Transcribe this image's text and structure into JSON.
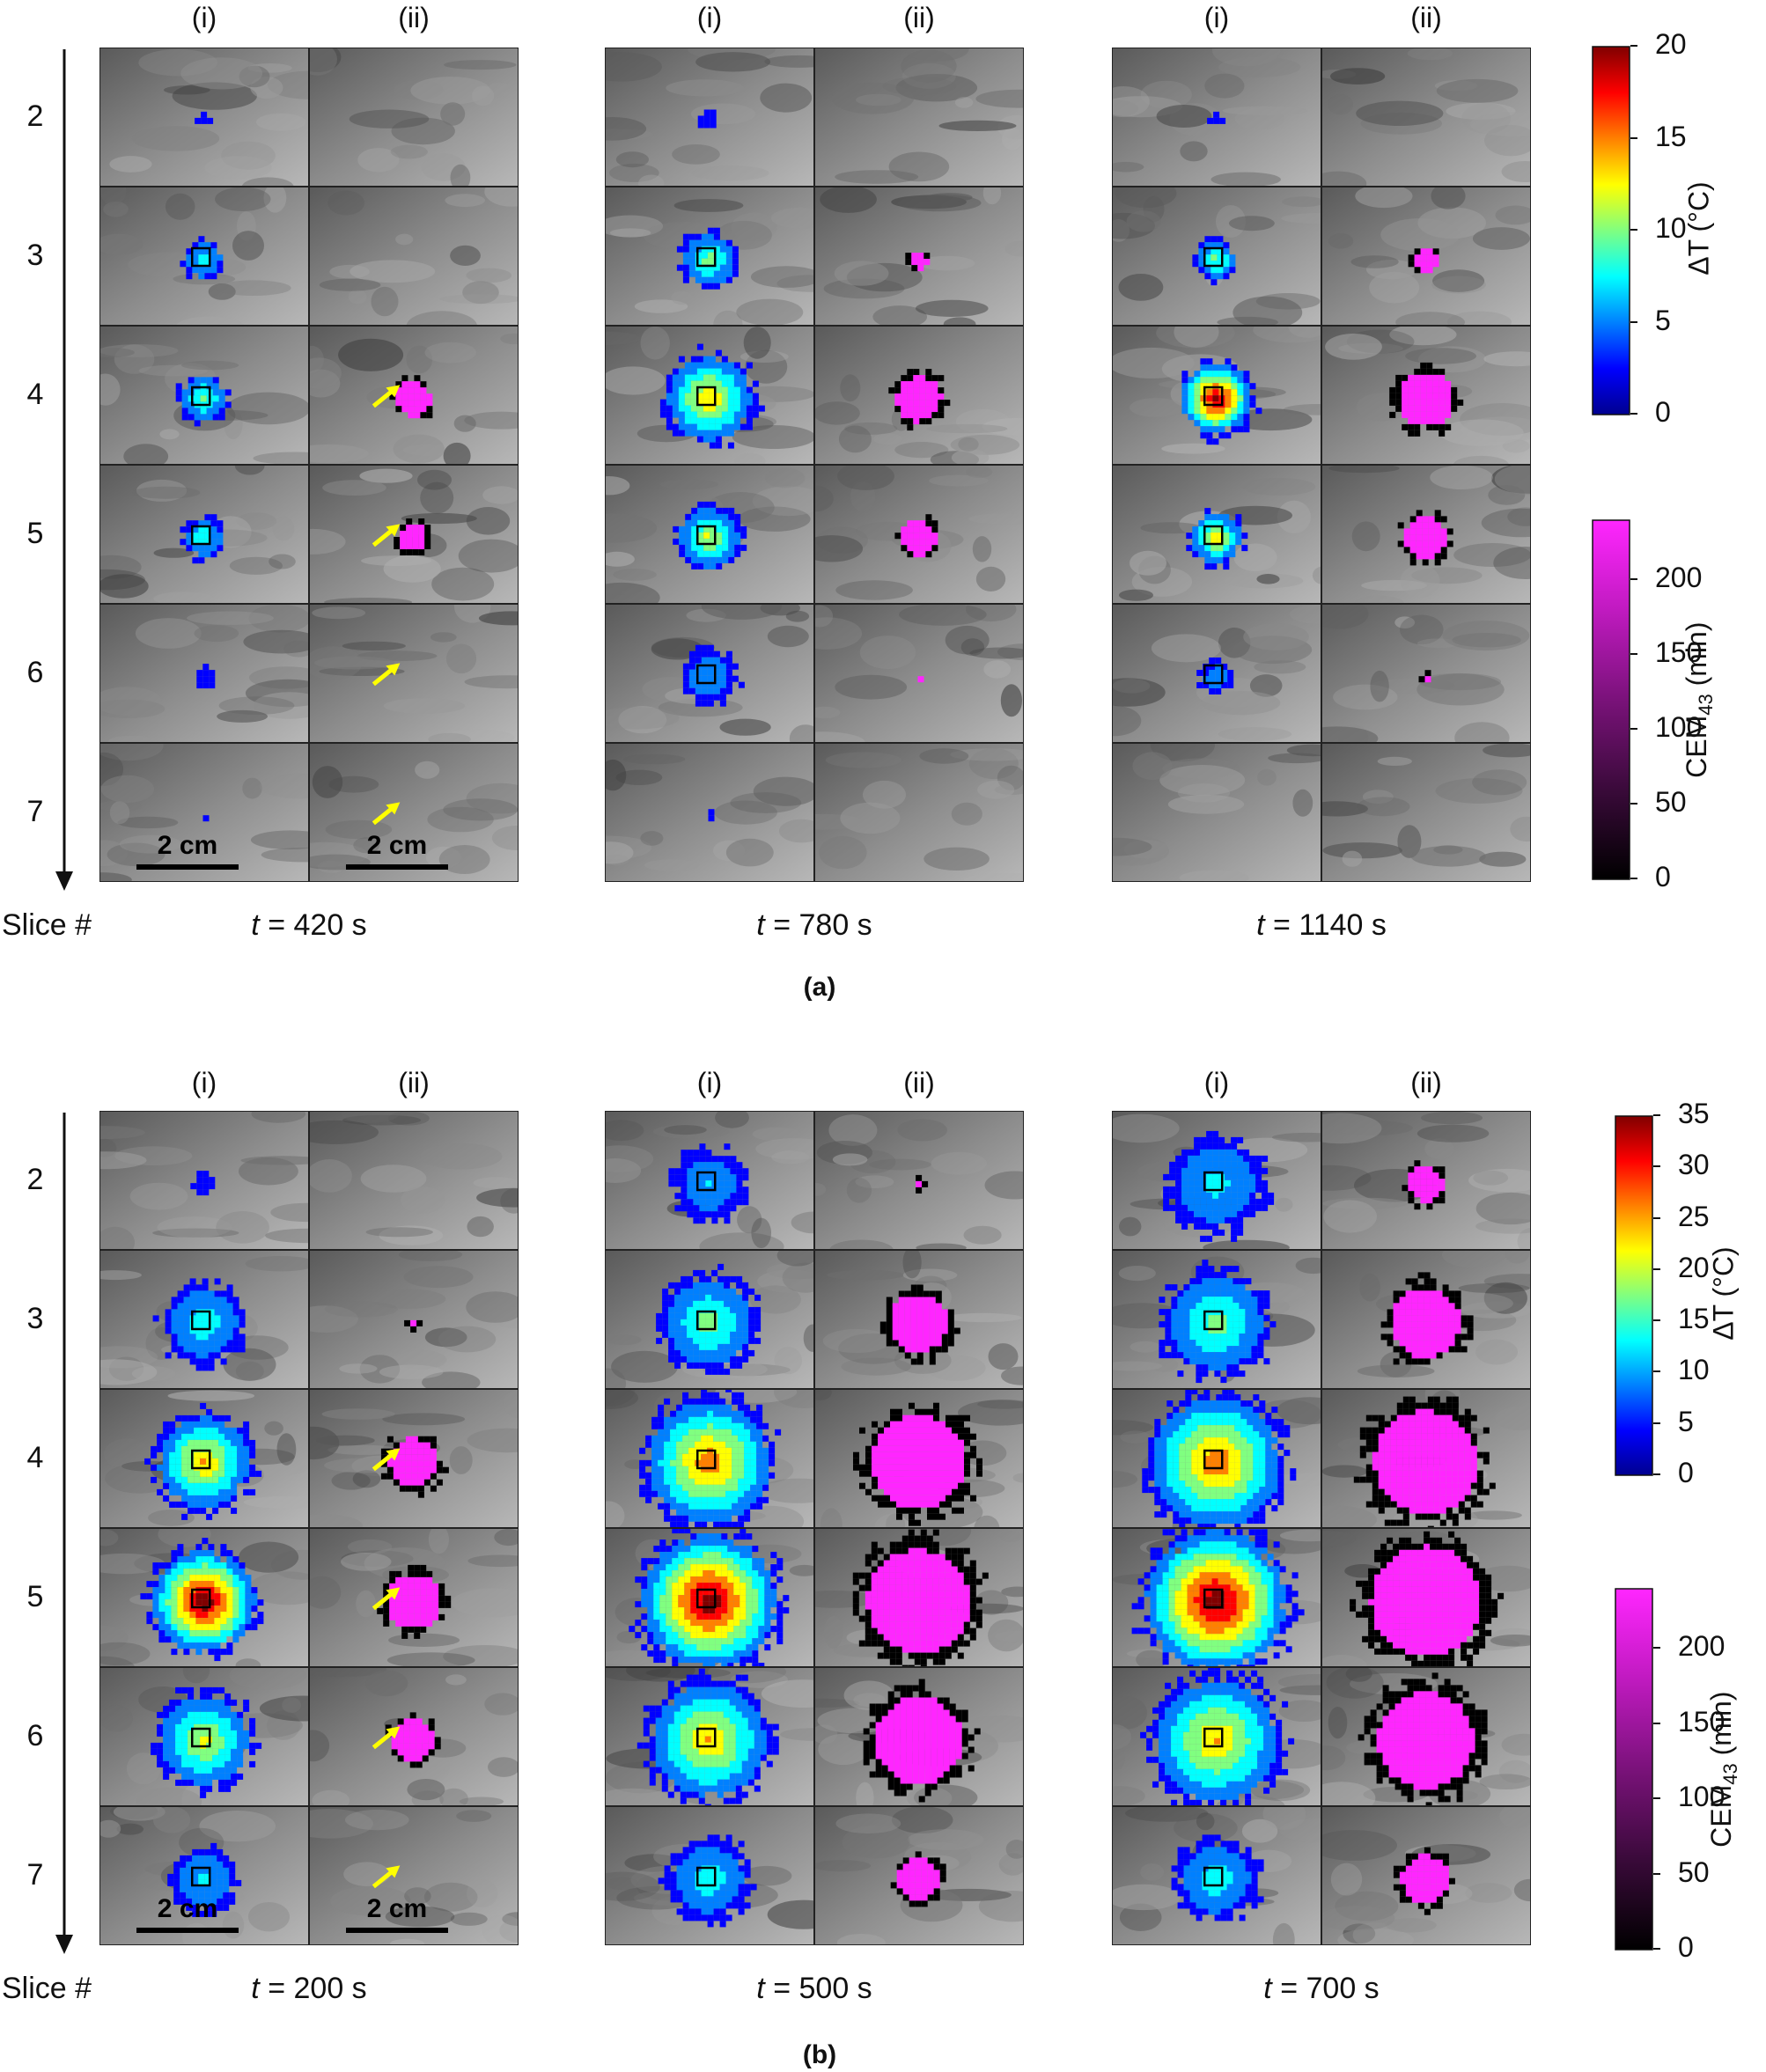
{
  "panels": [
    {
      "label": "(a)",
      "columns": [
        "(i)",
        "(ii)"
      ],
      "slices": [
        "2",
        "3",
        "4",
        "5",
        "6",
        "7"
      ],
      "slice_axis_label": "Slice #",
      "times": [
        "420 s",
        "780 s",
        "1140 s"
      ],
      "time_symbol": "t",
      "scale_bar_label": "2 cm",
      "colorbar_dT": {
        "title": "ΔT (°C)",
        "ticks": [
          "20",
          "15",
          "10",
          "5",
          "0"
        ],
        "min": 0,
        "max": 20
      },
      "colorbar_cem": {
        "title_base": "CEM",
        "title_sub": "43",
        "title_unit": " (min)",
        "ticks": [
          "200",
          "150",
          "100",
          "50",
          "0"
        ],
        "min": 0,
        "max": 240
      }
    },
    {
      "label": "(b)",
      "columns": [
        "(i)",
        "(ii)"
      ],
      "slices": [
        "2",
        "3",
        "4",
        "5",
        "6",
        "7"
      ],
      "slice_axis_label": "Slice #",
      "times": [
        "200 s",
        "500 s",
        "700 s"
      ],
      "time_symbol": "t",
      "scale_bar_label": "2 cm",
      "colorbar_dT": {
        "title": "ΔT (°C)",
        "ticks": [
          "35",
          "30",
          "25",
          "20",
          "15",
          "10",
          "5",
          "0"
        ],
        "min": 0,
        "max": 35
      },
      "colorbar_cem": {
        "title_base": "CEM",
        "title_sub": "43",
        "title_unit": " (min)",
        "ticks": [
          "200",
          "150",
          "100",
          "50",
          "0"
        ],
        "min": 0,
        "max": 240
      }
    }
  ],
  "colors": {
    "jet": [
      "#00008f",
      "#0000ff",
      "#0080ff",
      "#00ffff",
      "#80ff80",
      "#ffff00",
      "#ff8000",
      "#ff0000",
      "#800000"
    ],
    "magenta": [
      "#000000",
      "#3a0a3a",
      "#7a127a",
      "#c01ac0",
      "#ff26ff"
    ],
    "arrow": "#ffff00",
    "roi_box": "#000000"
  }
}
